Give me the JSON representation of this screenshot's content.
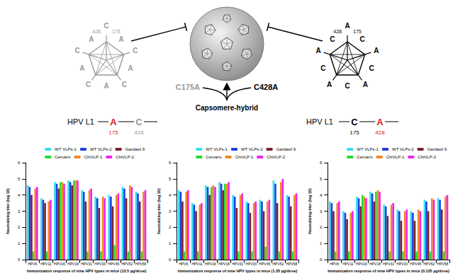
{
  "diagram": {
    "center_label": "Capsomere-hybrid",
    "capsomeres": [
      {
        "name": "C175A",
        "color": "#999999",
        "outer_letter": "C",
        "inner_letter": "A",
        "marks": [
          428,
          175
        ],
        "gene": "HPV L1",
        "sequence": [
          {
            "letter": "A",
            "position": 175,
            "color": "#e02020"
          },
          {
            "letter": "C",
            "position": 428,
            "color": "#999999"
          }
        ]
      },
      {
        "name": "C428A",
        "color": "#000000",
        "outer_letter": "A",
        "inner_letter": "C",
        "marks": [
          428,
          175
        ],
        "gene": "HPV L1",
        "sequence": [
          {
            "letter": "C",
            "position": 175,
            "color": "#000000"
          },
          {
            "letter": "A",
            "position": 428,
            "color": "#e02020"
          }
        ]
      }
    ]
  },
  "chart_data": [
    {
      "type": "bar",
      "x_label": "Immunization response of nine HPV types in mice (13.5 µg/dose)",
      "y_label": "Neutralizing titer (log 10)",
      "categories": [
        "HPV6",
        "HPV11",
        "HPV16",
        "HPV18",
        "HPV31",
        "HPV33",
        "HPV45",
        "HPV52",
        "HPV58"
      ],
      "ylim": [
        0,
        6
      ],
      "yticks": [
        0,
        1,
        2,
        3,
        4,
        5,
        6
      ],
      "grid": false,
      "legend": "top-right",
      "series": [
        {
          "name": "WT VLPs-1",
          "color": "#33e0f0",
          "values": [
            4.6,
            3.8,
            4.8,
            4.9,
            4.3,
            3.9,
            4.0,
            4.5,
            4.2
          ]
        },
        {
          "name": "WT VLPs-2",
          "color": "#1f3fdc",
          "values": [
            4.5,
            3.7,
            4.7,
            4.8,
            4.2,
            3.8,
            3.9,
            4.4,
            4.1
          ]
        },
        {
          "name": "Gardasil 9",
          "color": "#7a1f2f",
          "values": [
            4.0,
            3.5,
            4.4,
            4.6,
            3.6,
            3.2,
            3.3,
            3.8,
            3.6
          ]
        },
        {
          "name": "Cervarix",
          "color": "#22dd33",
          "values": [
            0.5,
            0.5,
            4.8,
            4.9,
            0.5,
            0.5,
            0.9,
            0.5,
            0.5
          ]
        },
        {
          "name": "ChiVLP-1",
          "color": "#f08a1e",
          "values": [
            4.4,
            3.6,
            4.8,
            4.9,
            4.3,
            3.9,
            4.0,
            4.6,
            4.2
          ]
        },
        {
          "name": "ChiVLP-2",
          "color": "#ee22ee",
          "values": [
            4.5,
            3.7,
            4.7,
            4.9,
            4.4,
            3.8,
            4.1,
            4.5,
            4.3
          ]
        }
      ]
    },
    {
      "type": "bar",
      "x_label": "Immunization response of nine HPV types in mice (1.35 µg/dose)",
      "y_label": "Neutralizing titer (log 10)",
      "categories": [
        "HPV6",
        "HPV11",
        "HPV16",
        "HPV18",
        "HPV31",
        "HPV33",
        "HPV45",
        "HPV52",
        "HPV58"
      ],
      "ylim": [
        0,
        6
      ],
      "yticks": [
        0,
        1,
        2,
        3,
        4,
        5,
        6
      ],
      "grid": false,
      "legend": "top-right",
      "series": [
        {
          "name": "WT VLPs-1",
          "color": "#33e0f0",
          "values": [
            4.3,
            3.5,
            4.6,
            4.8,
            4.0,
            3.6,
            3.7,
            4.9,
            4.0
          ]
        },
        {
          "name": "WT VLPs-2",
          "color": "#1f3fdc",
          "values": [
            4.2,
            3.4,
            4.5,
            4.7,
            3.9,
            3.5,
            3.6,
            4.7,
            3.9
          ]
        },
        {
          "name": "Gardasil 9",
          "color": "#7a1f2f",
          "values": [
            3.6,
            3.0,
            4.0,
            4.3,
            3.2,
            2.9,
            3.0,
            3.5,
            3.3
          ]
        },
        {
          "name": "Cervarix",
          "color": "#22dd33",
          "values": [
            0.5,
            0.5,
            4.5,
            4.7,
            0.5,
            0.5,
            0.8,
            0.5,
            0.5
          ]
        },
        {
          "name": "ChiVLP-1",
          "color": "#f08a1e",
          "values": [
            4.2,
            3.4,
            4.6,
            4.7,
            4.0,
            3.5,
            3.6,
            4.8,
            4.0
          ]
        },
        {
          "name": "ChiVLP-2",
          "color": "#ee22ee",
          "values": [
            4.3,
            3.5,
            4.5,
            4.8,
            4.1,
            3.6,
            3.7,
            5.0,
            4.1
          ]
        }
      ]
    },
    {
      "type": "bar",
      "x_label": "Immunization response of nine HPV types in mice (0.135 µg/dose)",
      "y_label": "Neutralizing titer (log 10)",
      "categories": [
        "HPV6",
        "HPV11",
        "HPV16",
        "HPV18",
        "HPV31",
        "HPV33",
        "HPV45",
        "HPV52",
        "HPV58"
      ],
      "ylim": [
        0,
        6
      ],
      "yticks": [
        0,
        1,
        2,
        3,
        4,
        5,
        6
      ],
      "grid": false,
      "legend": "top-right",
      "series": [
        {
          "name": "WT VLPs-1",
          "color": "#33e0f0",
          "values": [
            3.6,
            3.0,
            3.9,
            4.2,
            3.4,
            3.1,
            3.0,
            3.7,
            3.8
          ]
        },
        {
          "name": "WT VLPs-2",
          "color": "#1f3fdc",
          "values": [
            3.5,
            2.9,
            3.8,
            4.1,
            3.3,
            3.0,
            2.9,
            3.6,
            3.7
          ]
        },
        {
          "name": "Gardasil 9",
          "color": "#7a1f2f",
          "values": [
            3.0,
            2.5,
            3.3,
            3.6,
            2.7,
            2.4,
            2.4,
            3.0,
            3.1
          ]
        },
        {
          "name": "Cervarix",
          "color": "#22dd33",
          "values": [
            0.5,
            0.5,
            4.0,
            4.2,
            0.5,
            0.5,
            0.5,
            0.5,
            0.5
          ]
        },
        {
          "name": "ChiVLP-1",
          "color": "#f08a1e",
          "values": [
            3.5,
            2.9,
            3.9,
            4.3,
            3.4,
            3.0,
            3.1,
            3.8,
            3.9
          ]
        },
        {
          "name": "ChiVLP-2",
          "color": "#ee22ee",
          "values": [
            3.6,
            3.0,
            3.8,
            4.2,
            3.5,
            3.1,
            3.0,
            3.7,
            4.0
          ]
        }
      ]
    }
  ]
}
